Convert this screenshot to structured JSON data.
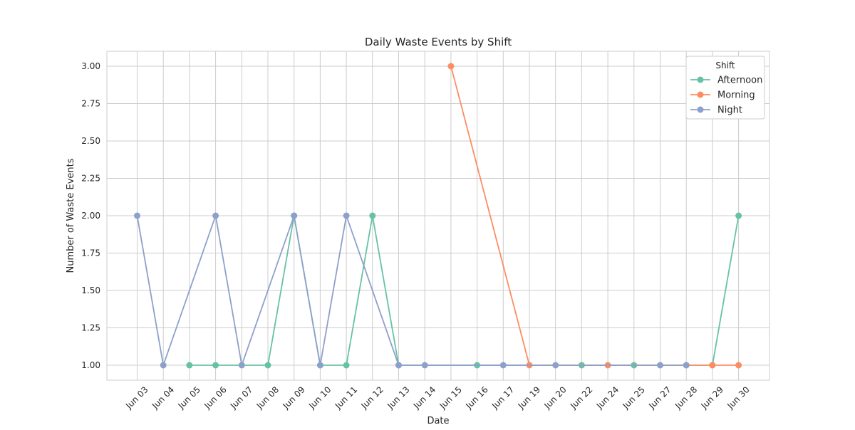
{
  "chart_data": {
    "type": "line",
    "title": "Daily Waste Events by Shift",
    "xlabel": "Date",
    "ylabel": "Number of Waste Events",
    "categories": [
      "Jun 03",
      "Jun 04",
      "Jun 05",
      "Jun 06",
      "Jun 07",
      "Jun 08",
      "Jun 09",
      "Jun 10",
      "Jun 11",
      "Jun 12",
      "Jun 13",
      "Jun 14",
      "Jun 15",
      "Jun 16",
      "Jun 17",
      "Jun 19",
      "Jun 20",
      "Jun 22",
      "Jun 24",
      "Jun 25",
      "Jun 27",
      "Jun 28",
      "Jun 29",
      "Jun 30"
    ],
    "ylim": [
      0.9,
      3.1
    ],
    "yticks": [
      1.0,
      1.25,
      1.5,
      1.75,
      2.0,
      2.25,
      2.5,
      2.75,
      3.0
    ],
    "ytick_labels": [
      "1.00",
      "1.25",
      "1.50",
      "1.75",
      "2.00",
      "2.25",
      "2.50",
      "2.75",
      "3.00"
    ],
    "grid": true,
    "legend": {
      "title": "Shift",
      "placement": "top-right"
    },
    "series": [
      {
        "name": "Afternoon",
        "color": "#66c2a5",
        "points": [
          {
            "x": "Jun 05",
            "y": 1
          },
          {
            "x": "Jun 06",
            "y": 1
          },
          {
            "x": "Jun 08",
            "y": 1
          },
          {
            "x": "Jun 09",
            "y": 2
          },
          {
            "x": "Jun 10",
            "y": 1
          },
          {
            "x": "Jun 11",
            "y": 1
          },
          {
            "x": "Jun 12",
            "y": 2
          },
          {
            "x": "Jun 13",
            "y": 1
          },
          {
            "x": "Jun 16",
            "y": 1
          },
          {
            "x": "Jun 22",
            "y": 1
          },
          {
            "x": "Jun 25",
            "y": 1
          },
          {
            "x": "Jun 29",
            "y": 1
          },
          {
            "x": "Jun 30",
            "y": 2
          }
        ]
      },
      {
        "name": "Morning",
        "color": "#fc8d62",
        "points": [
          {
            "x": "Jun 15",
            "y": 3
          },
          {
            "x": "Jun 19",
            "y": 1
          },
          {
            "x": "Jun 24",
            "y": 1
          },
          {
            "x": "Jun 28",
            "y": 1
          },
          {
            "x": "Jun 29",
            "y": 1
          },
          {
            "x": "Jun 30",
            "y": 1
          }
        ]
      },
      {
        "name": "Night",
        "color": "#8da0cb",
        "points": [
          {
            "x": "Jun 03",
            "y": 2
          },
          {
            "x": "Jun 04",
            "y": 1
          },
          {
            "x": "Jun 06",
            "y": 2
          },
          {
            "x": "Jun 07",
            "y": 1
          },
          {
            "x": "Jun 09",
            "y": 2
          },
          {
            "x": "Jun 10",
            "y": 1
          },
          {
            "x": "Jun 11",
            "y": 2
          },
          {
            "x": "Jun 13",
            "y": 1
          },
          {
            "x": "Jun 14",
            "y": 1
          },
          {
            "x": "Jun 17",
            "y": 1
          },
          {
            "x": "Jun 20",
            "y": 1
          },
          {
            "x": "Jun 27",
            "y": 1
          },
          {
            "x": "Jun 28",
            "y": 1
          }
        ]
      }
    ]
  }
}
